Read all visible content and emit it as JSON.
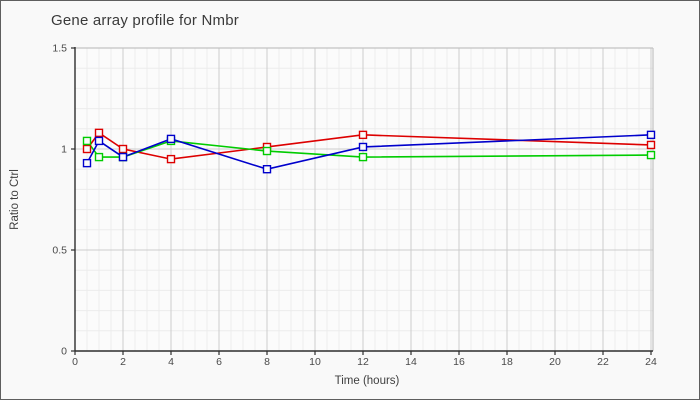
{
  "window": {
    "background": "#f9f9f9",
    "border_color": "#5f5f5f"
  },
  "chart_data": {
    "type": "line",
    "title": "Gene array profile for Nmbr",
    "xlabel": "Time (hours)",
    "ylabel": "Ratio to Ctrl",
    "x": [
      0.5,
      1,
      2,
      4,
      8,
      12,
      24
    ],
    "series": [
      {
        "name": "red-series",
        "color": "#dd0000",
        "values": [
          1.0,
          1.08,
          1.0,
          0.95,
          1.01,
          1.07,
          1.02
        ]
      },
      {
        "name": "green-series",
        "color": "#00cc00",
        "values": [
          1.04,
          0.96,
          0.96,
          1.04,
          0.99,
          0.96,
          0.97
        ]
      },
      {
        "name": "blue-series",
        "color": "#0000cc",
        "values": [
          0.93,
          1.04,
          0.96,
          1.05,
          0.9,
          1.01,
          1.07
        ]
      }
    ],
    "xlim": [
      0,
      24
    ],
    "ylim": [
      0,
      1.5
    ],
    "x_ticks": [
      0,
      2,
      4,
      6,
      8,
      10,
      12,
      14,
      16,
      18,
      20,
      22,
      24
    ],
    "y_ticks": [
      0,
      0.5,
      1,
      1.5
    ],
    "x_minor_step": 0.5,
    "y_minor_step": 0.1,
    "grid": true,
    "legend_position": "none",
    "marker": "open-square",
    "colors": {
      "axis": "#2e2e2e",
      "major_grid": "#cdcdcd",
      "minor_grid": "#ececec",
      "plot_border": "#c3c3c3",
      "plot_background": "#fbfbfb",
      "marker_fill": "#fbfbfb"
    }
  }
}
